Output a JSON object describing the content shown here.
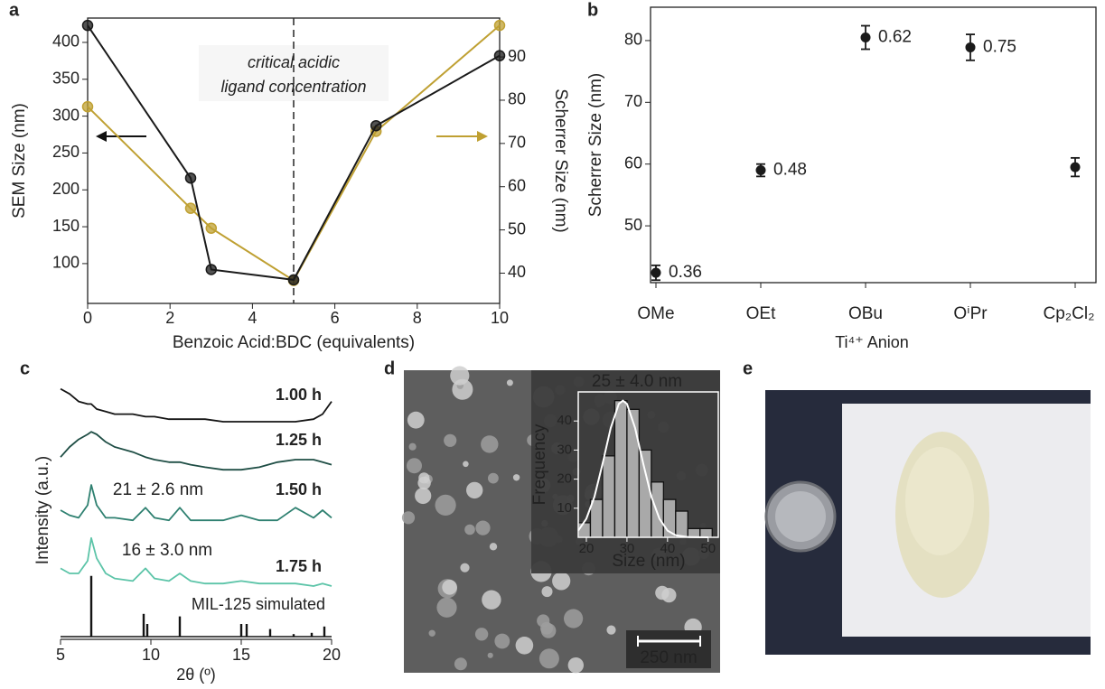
{
  "panel_labels": [
    "a",
    "b",
    "c",
    "d",
    "e"
  ],
  "scale_bar": "250 nm",
  "chart_data": [
    {
      "type": "line",
      "x_label": "Benzoic Acid:BDC (equivalents)",
      "y_label": "SEM Size (nm)",
      "y2_label": "Scherrer Size (nm)",
      "annotation": [
        "critical acidic",
        "ligand concentration"
      ],
      "vline": 5,
      "x": [
        0,
        2.5,
        3,
        5,
        7,
        10
      ],
      "series": [
        {
          "color": "#1a1a1a",
          "values": [
            423,
            216,
            92,
            78,
            287,
            382
          ]
        },
        {
          "color": "#bfa032",
          "values": [
            78.5,
            55,
            50.4,
            38.3,
            72.8,
            97.3
          ],
          "axis": "y2"
        }
      ],
      "xlim": [
        0,
        10
      ],
      "xticks": [
        0,
        2,
        4,
        6,
        8,
        10
      ],
      "ylim": [
        46,
        433
      ],
      "yticks": [
        100,
        150,
        200,
        250,
        300,
        350,
        400
      ],
      "y2lim": [
        33,
        99
      ],
      "y2ticks": [
        40,
        50,
        60,
        70,
        80,
        90
      ]
    },
    {
      "type": "scatter",
      "x_label": "Ti⁴⁺ Anion",
      "y_label": "Scherrer Size (nm)",
      "categories": [
        "OMe",
        "OEt",
        "OBu",
        "OⁱPr",
        "Cp₂Cl₂"
      ],
      "values": [
        42.4,
        59.0,
        80.5,
        78.9,
        59.5
      ],
      "errors": [
        1.2,
        1.0,
        1.9,
        2.1,
        1.5
      ],
      "labels": [
        0.36,
        0.48,
        0.62,
        0.75,
        null
      ],
      "color": "#1a1a1a",
      "ylim": [
        40.8,
        85.4
      ],
      "yticks": [
        50,
        60,
        70,
        80
      ]
    },
    {
      "type": "line",
      "x_label": "2θ (º)",
      "y_label": "Intensity (a.u.)",
      "xlim": [
        5,
        20
      ],
      "xticks": [
        5,
        10,
        15,
        20
      ],
      "ylim": [
        0,
        10
      ],
      "x": [
        5,
        5.5,
        6,
        6.5,
        6.7,
        7,
        7.5,
        8,
        9,
        9.7,
        10.2,
        11,
        11.6,
        12.2,
        13,
        14,
        15,
        16,
        17,
        18,
        19,
        19.5,
        20
      ],
      "series": [
        {
          "name": "1.00 h",
          "color": "#141414",
          "values": [
            9.8,
            9.6,
            9.3,
            9.2,
            9.2,
            9.0,
            8.9,
            8.8,
            8.8,
            8.7,
            8.7,
            8.6,
            8.6,
            8.6,
            8.6,
            8.5,
            8.5,
            8.5,
            8.5,
            8.5,
            8.6,
            8.8,
            9.3
          ]
        },
        {
          "name": "1.25 h",
          "color": "#1f4e45",
          "values": [
            7.1,
            7.5,
            7.8,
            8.0,
            8.1,
            8.0,
            7.7,
            7.5,
            7.3,
            7.1,
            7.0,
            6.9,
            6.9,
            6.8,
            6.7,
            6.6,
            6.6,
            6.7,
            6.9,
            7.0,
            7.0,
            6.9,
            6.8
          ]
        },
        {
          "name": "1.50 h",
          "color": "#2e8070",
          "values": [
            5.0,
            4.8,
            4.7,
            5.2,
            6.0,
            5.2,
            4.7,
            4.7,
            4.6,
            5.1,
            4.7,
            4.6,
            5.1,
            4.6,
            4.6,
            4.6,
            4.8,
            4.6,
            4.6,
            5.1,
            4.7,
            5.0,
            4.7
          ]
        },
        {
          "name": "1.75 h",
          "color": "#5cc4a8",
          "values": [
            2.7,
            2.5,
            2.5,
            3.0,
            3.9,
            3.1,
            2.5,
            2.3,
            2.2,
            2.7,
            2.3,
            2.2,
            2.5,
            2.2,
            2.1,
            2.1,
            2.2,
            2.1,
            2.1,
            2.1,
            2.0,
            2.1,
            2.0
          ]
        }
      ],
      "sticks": {
        "name": "MIL-125 simulated",
        "color": "#141414",
        "x": [
          6.7,
          9.6,
          9.8,
          11.6,
          15.0,
          15.3,
          16.6,
          17.9,
          18.9,
          19.6
        ],
        "values": [
          2.4,
          0.9,
          0.5,
          0.8,
          0.5,
          0.5,
          0.3,
          0.1,
          0.15,
          0.4
        ]
      },
      "annotations": [
        {
          "text": "21 ± 2.6 nm",
          "color": "#2e8070"
        },
        {
          "text": "16 ± 3.0 nm",
          "color": "#5cc4a8"
        }
      ]
    },
    {
      "type": "histogram",
      "title": "25 ± 4.0 nm",
      "x_label": "Size (nm)",
      "y_label": "Frequency",
      "bins": [
        18,
        21,
        24,
        27,
        30,
        33,
        36,
        39,
        42,
        45,
        48,
        51
      ],
      "values": [
        5,
        13,
        28,
        47,
        44,
        30,
        19,
        13,
        9,
        3,
        3
      ],
      "color": "#a9a9a9",
      "fit": {
        "x": [
          18,
          20,
          22,
          24,
          26,
          28,
          29,
          30,
          32,
          34,
          36,
          38,
          40,
          42,
          45,
          50
        ],
        "values": [
          2.3,
          6.4,
          14.0,
          25.4,
          37.6,
          45.9,
          47,
          45.9,
          37.6,
          25.4,
          14.0,
          6.4,
          2.3,
          0.7,
          0.1,
          0
        ]
      },
      "xlim": [
        18,
        52.5
      ],
      "xticks": [
        20,
        30,
        40,
        50
      ],
      "ylim": [
        0,
        50
      ],
      "yticks": [
        10,
        20,
        30,
        40
      ]
    }
  ]
}
